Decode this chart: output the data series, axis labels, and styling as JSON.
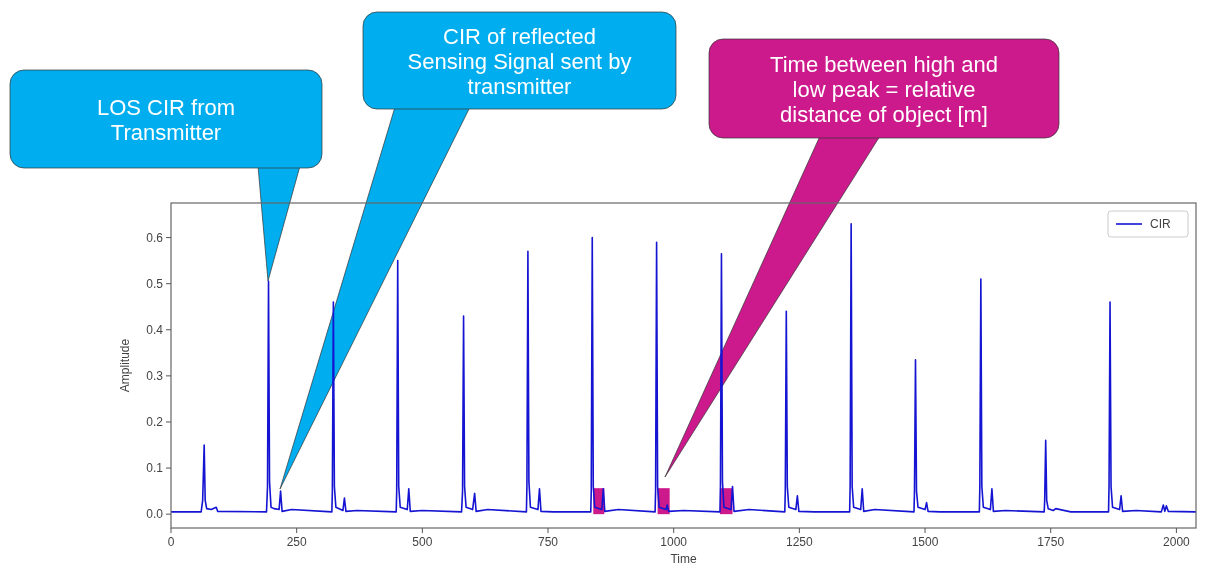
{
  "chart_data": {
    "type": "line",
    "xlabel": "Time",
    "ylabel": "Amplitude",
    "xlim": [
      0,
      2039
    ],
    "ylim": [
      -0.03,
      0.675
    ],
    "xticks": [
      0,
      250,
      500,
      750,
      1000,
      1250,
      1500,
      1750,
      2000
    ],
    "yticks": [
      {
        "value": 0,
        "label": "0.0"
      },
      {
        "value": 0.1,
        "label": "0.1"
      },
      {
        "value": 0.2,
        "label": "0.2"
      },
      {
        "value": 0.3,
        "label": "0.3"
      },
      {
        "value": 0.4,
        "label": "0.4"
      },
      {
        "value": 0.5,
        "label": "0.5"
      },
      {
        "value": 0.6,
        "label": "0.6"
      }
    ],
    "grid": false,
    "legend": "top right",
    "marker": "none",
    "line_style": "solid",
    "series": [
      {
        "name": "CIR",
        "color": "#1414d2",
        "x": [
          0,
          60,
          63,
          66,
          68,
          71,
          80,
          90,
          93,
          190,
          192,
          194,
          196,
          199,
          205,
          215,
          218,
          221,
          240,
          320,
          321,
          323,
          325,
          328,
          342,
          345,
          348,
          370,
          448,
          449,
          451,
          453,
          456,
          470,
          473,
          476,
          500,
          578,
          580,
          582,
          584,
          587,
          600,
          604,
          607,
          630,
          707,
          708,
          710,
          712,
          715,
          730,
          733,
          736,
          760,
          835,
          836,
          838,
          840,
          843,
          857,
          860,
          863,
          890,
          963,
          964,
          966,
          968,
          971,
          985,
          987,
          990,
          1020,
          1092,
          1093,
          1095,
          1097,
          1100,
          1114,
          1117,
          1120,
          1150,
          1221,
          1222,
          1224,
          1226,
          1229,
          1243,
          1246,
          1249,
          1280,
          1350,
          1351,
          1353,
          1355,
          1358,
          1372,
          1375,
          1378,
          1400,
          1478,
          1479,
          1481,
          1483,
          1486,
          1500,
          1503,
          1506,
          1530,
          1608,
          1609,
          1611,
          1613,
          1616,
          1630,
          1633,
          1636,
          1660,
          1737,
          1738,
          1740,
          1742,
          1745,
          1755,
          1760,
          1790,
          1865,
          1866,
          1868,
          1870,
          1873,
          1887,
          1890,
          1893,
          1920,
          1970,
          1974,
          1977,
          1980,
          1984,
          2039
        ],
        "values": [
          0.005,
          0.005,
          0.03,
          0.15,
          0.03,
          0.012,
          0.01,
          0.015,
          0.006,
          0.005,
          0.06,
          0.505,
          0.07,
          0.015,
          0.012,
          0.01,
          0.05,
          0.006,
          0.01,
          0.005,
          0.05,
          0.46,
          0.06,
          0.015,
          0.008,
          0.035,
          0.006,
          0.008,
          0.005,
          0.05,
          0.55,
          0.06,
          0.015,
          0.01,
          0.055,
          0.006,
          0.008,
          0.005,
          0.05,
          0.43,
          0.06,
          0.015,
          0.01,
          0.045,
          0.006,
          0.01,
          0.005,
          0.06,
          0.57,
          0.07,
          0.015,
          0.01,
          0.055,
          0.006,
          0.005,
          0.005,
          0.05,
          0.6,
          0.06,
          0.015,
          0.01,
          0.055,
          0.006,
          0.01,
          0.005,
          0.05,
          0.59,
          0.06,
          0.015,
          0.01,
          0.02,
          0.006,
          0.008,
          0.005,
          0.06,
          0.565,
          0.07,
          0.015,
          0.01,
          0.06,
          0.006,
          0.01,
          0.005,
          0.05,
          0.44,
          0.06,
          0.015,
          0.01,
          0.04,
          0.006,
          0.005,
          0.005,
          0.06,
          0.63,
          0.06,
          0.015,
          0.01,
          0.055,
          0.006,
          0.01,
          0.005,
          0.05,
          0.335,
          0.05,
          0.015,
          0.01,
          0.025,
          0.006,
          0.005,
          0.005,
          0.06,
          0.51,
          0.06,
          0.015,
          0.01,
          0.055,
          0.006,
          0.008,
          0.005,
          0.03,
          0.16,
          0.03,
          0.012,
          0.008,
          0.012,
          0.005,
          0.005,
          0.06,
          0.46,
          0.06,
          0.015,
          0.01,
          0.04,
          0.006,
          0.008,
          0.005,
          0.02,
          0.006,
          0.018,
          0.006,
          0.005
        ]
      }
    ],
    "bands": [
      {
        "axis": "x",
        "from": 840,
        "to": 862,
        "color": "#cc1a8c"
      },
      {
        "axis": "x",
        "from": 968,
        "to": 992,
        "color": "#cc1a8c"
      },
      {
        "axis": "x",
        "from": 1092,
        "to": 1117,
        "color": "#cc1a8c"
      }
    ],
    "annotations": [
      "LOS CIR from Transmitter",
      "CIR of reflected Sensing Signal sent by transmitter",
      "Time between high and low peak = relative distance of object [m]"
    ]
  }
}
